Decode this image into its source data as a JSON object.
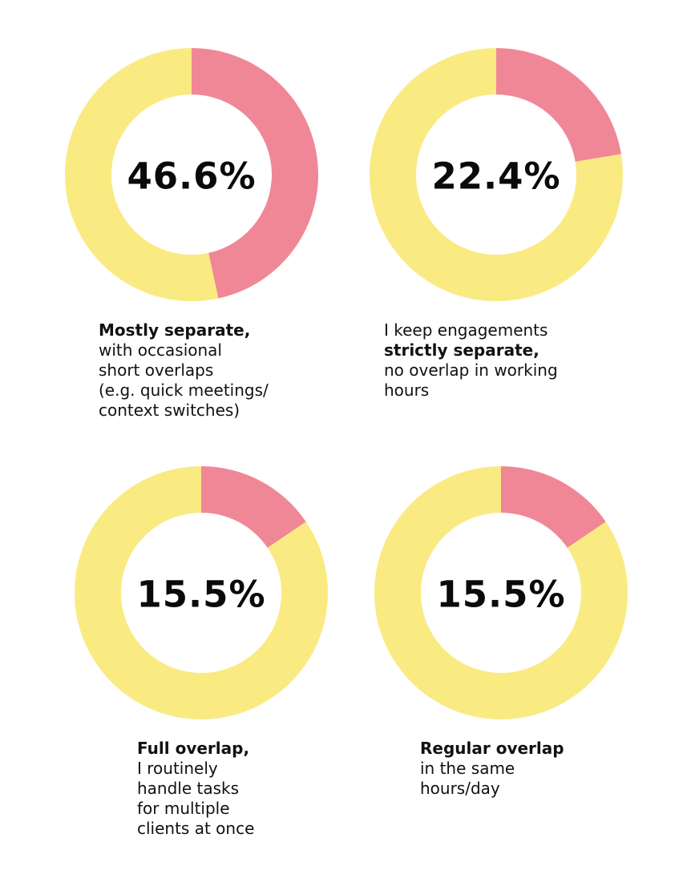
{
  "colors": {
    "highlight": "#F08797",
    "remainder": "#FAEA82",
    "text": "#0A0A0A"
  },
  "chart_data": [
    {
      "type": "pie",
      "subtype": "donut",
      "value": 46.6,
      "label": "46.6%",
      "caption": {
        "bold": [
          "Mostly separate,"
        ],
        "lines": [
          "with occasional",
          "short overlaps",
          "(e.g. quick meetings/",
          "context switches)"
        ]
      }
    },
    {
      "type": "pie",
      "subtype": "donut",
      "value": 22.4,
      "label": "22.4%",
      "caption": {
        "lines_before": [
          "I keep engagements"
        ],
        "bold": [
          "strictly separate,"
        ],
        "lines": [
          "no overlap in working",
          "hours"
        ]
      }
    },
    {
      "type": "pie",
      "subtype": "donut",
      "value": 15.5,
      "label": "15.5%",
      "caption": {
        "bold": [
          "Full overlap,"
        ],
        "lines": [
          "I routinely",
          "handle tasks",
          "for multiple",
          "clients at once"
        ]
      }
    },
    {
      "type": "pie",
      "subtype": "donut",
      "value": 15.5,
      "label": "15.5%",
      "caption": {
        "bold": [
          "Regular overlap"
        ],
        "lines": [
          "in the same",
          "hours/day"
        ]
      }
    }
  ]
}
